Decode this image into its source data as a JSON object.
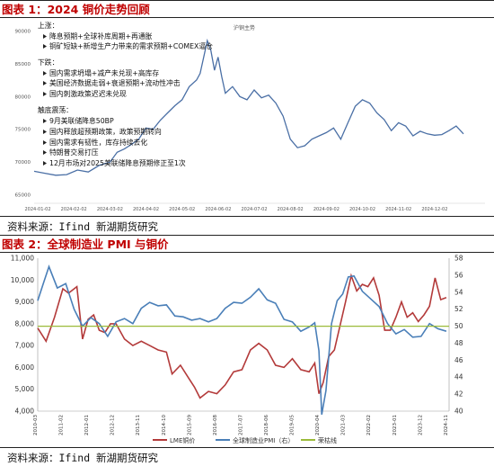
{
  "figure1": {
    "label": "图表 1：",
    "title": "2024 铜价走势回顾",
    "source": "资料来源：Ifind 新湖期货研究",
    "chart_data": {
      "type": "line",
      "legend": "沪铜主势",
      "y_ticks": [
        "65000",
        "70000",
        "75000",
        "80000",
        "85000",
        "90000"
      ],
      "x_ticks": [
        "2024-01-02",
        "2024-02-02",
        "2024-03-02",
        "2024-04-02",
        "2024-05-02",
        "2024-06-02",
        "2024-07-02",
        "2024-08-02",
        "2024-09-02",
        "2024-10-02",
        "2024-11-02",
        "2024-12-02"
      ],
      "ylim": [
        64000,
        91000
      ],
      "xlim": [
        0,
        12
      ],
      "series": [
        {
          "name": "沪铜主势",
          "x": [
            0,
            0.3,
            0.6,
            0.9,
            1.2,
            1.5,
            1.8,
            2.1,
            2.3,
            2.5,
            2.7,
            2.9,
            3.1,
            3.3,
            3.5,
            3.7,
            3.9,
            4.1,
            4.3,
            4.5,
            4.6,
            4.7,
            4.8,
            4.9,
            5.0,
            5.1,
            5.2,
            5.3,
            5.5,
            5.7,
            5.9,
            6.1,
            6.3,
            6.5,
            6.7,
            6.9,
            7.1,
            7.3,
            7.5,
            7.7,
            7.9,
            8.1,
            8.3,
            8.5,
            8.7,
            8.9,
            9.1,
            9.3,
            9.5,
            9.7,
            9.9,
            10.1,
            10.3,
            10.5,
            10.7,
            10.9,
            11.1,
            11.3,
            11.5,
            11.7,
            11.9
          ],
          "values": [
            68600,
            68300,
            68000,
            68100,
            68800,
            68500,
            69500,
            70000,
            71500,
            72000,
            72700,
            73500,
            75200,
            75000,
            76400,
            77500,
            78600,
            79500,
            81500,
            82500,
            83500,
            86000,
            88500,
            87000,
            84000,
            86000,
            83000,
            80500,
            81500,
            80000,
            79500,
            81000,
            79800,
            80200,
            79000,
            77000,
            73500,
            72200,
            72500,
            73500,
            74000,
            74500,
            75200,
            73500,
            76000,
            78500,
            79500,
            79000,
            77500,
            76500,
            74800,
            76000,
            75500,
            74000,
            74700,
            74300,
            74100,
            74200,
            74800,
            75500,
            74300
          ]
        }
      ],
      "annotations": [
        {
          "text": "上涨："
        },
        {
          "text": "降息预期+全球补库周期+再通胀"
        },
        {
          "text": "铜矿短缺+新增生产力带来的需求预期+COMEX逼仓"
        },
        {
          "text": "下跌："
        },
        {
          "text": "国内需求坍塌+减产未兑现+高库存"
        },
        {
          "text": "美国经济数据走弱+衰退预期+流动性冲击"
        },
        {
          "text": "国内刺激政策迟迟未兑现"
        },
        {
          "text": "触底震荡："
        },
        {
          "text": "9月美联储降息50BP"
        },
        {
          "text": "国内释放超预期政策，政策预期转向"
        },
        {
          "text": "国内需求有韧性，库存持续去化"
        },
        {
          "text": "特朗普交易打压"
        },
        {
          "text": "12月市场对2025美联储降息预期修正至1次"
        }
      ]
    }
  },
  "figure2": {
    "label": "图表 2：",
    "title": "全球制造业 PMI 与铜价",
    "source": "资料来源：Ifind 新湖期货研究",
    "chart_data": {
      "type": "line",
      "y_left_ticks": [
        "4,000",
        "5,000",
        "6,000",
        "7,000",
        "8,000",
        "9,000",
        "10,000",
        "11,000"
      ],
      "y_right_ticks": [
        "40",
        "42",
        "44",
        "46",
        "48",
        "50",
        "52",
        "54",
        "56",
        "58"
      ],
      "ylim_left": [
        4000,
        11000
      ],
      "ylim_right": [
        40,
        58
      ],
      "x_ticks": [
        "2010-03",
        "2011-02",
        "2012-01",
        "2012-12",
        "2013-11",
        "2014-10",
        "2015-09",
        "2016-08",
        "2017-07",
        "2018-06",
        "2019-05",
        "2020-04",
        "2021-03",
        "2022-02",
        "2023-01",
        "2023-12",
        "2024-11"
      ],
      "xlim": [
        2010.2,
        2024.9
      ],
      "series": [
        {
          "name": "LME铜价",
          "axis": "left",
          "x": [
            2010.2,
            2010.5,
            2010.8,
            2011.1,
            2011.3,
            2011.6,
            2011.8,
            2012.0,
            2012.2,
            2012.4,
            2012.6,
            2012.8,
            2013.0,
            2013.3,
            2013.6,
            2013.9,
            2014.2,
            2014.5,
            2014.8,
            2015.0,
            2015.3,
            2015.6,
            2015.8,
            2016.0,
            2016.3,
            2016.6,
            2016.9,
            2017.2,
            2017.5,
            2017.8,
            2018.1,
            2018.4,
            2018.7,
            2019.0,
            2019.3,
            2019.6,
            2019.9,
            2020.1,
            2020.25,
            2020.4,
            2020.6,
            2020.8,
            2021.0,
            2021.2,
            2021.4,
            2021.6,
            2021.8,
            2022.0,
            2022.2,
            2022.4,
            2022.6,
            2022.8,
            2023.0,
            2023.2,
            2023.4,
            2023.6,
            2023.8,
            2024.0,
            2024.2,
            2024.4,
            2024.6,
            2024.8
          ],
          "values": [
            7800,
            7200,
            8300,
            9600,
            9400,
            9700,
            7300,
            8200,
            8400,
            7700,
            7600,
            8000,
            8000,
            7300,
            7000,
            7200,
            7000,
            6800,
            6700,
            5700,
            6100,
            5500,
            5100,
            4600,
            4900,
            4800,
            5200,
            5800,
            5900,
            6800,
            7100,
            6800,
            6100,
            6000,
            6400,
            5900,
            5800,
            6200,
            4800,
            5300,
            6500,
            6800,
            7900,
            9000,
            10200,
            9500,
            9800,
            9700,
            10100,
            9300,
            7700,
            7700,
            8300,
            9000,
            8300,
            8500,
            8100,
            8400,
            8800,
            10100,
            9100,
            9200
          ]
        },
        {
          "name": "全球制造业PMI（右）",
          "axis": "right",
          "x": [
            2010.2,
            2010.4,
            2010.6,
            2010.9,
            2011.2,
            2011.5,
            2011.8,
            2012.1,
            2012.4,
            2012.7,
            2013.0,
            2013.3,
            2013.6,
            2013.9,
            2014.2,
            2014.5,
            2014.8,
            2015.1,
            2015.4,
            2015.7,
            2016.0,
            2016.3,
            2016.6,
            2016.9,
            2017.2,
            2017.5,
            2017.8,
            2018.1,
            2018.4,
            2018.7,
            2019.0,
            2019.3,
            2019.6,
            2019.9,
            2020.1,
            2020.25,
            2020.35,
            2020.5,
            2020.7,
            2020.9,
            2021.1,
            2021.3,
            2021.5,
            2021.8,
            2022.1,
            2022.4,
            2022.7,
            2023.0,
            2023.3,
            2023.6,
            2023.9,
            2024.2,
            2024.5,
            2024.8
          ],
          "values": [
            53,
            55,
            57,
            54.5,
            55,
            52,
            50,
            51,
            50.3,
            48.8,
            50.5,
            50.9,
            50.3,
            52.1,
            52.8,
            52.4,
            52.5,
            51.2,
            51.1,
            50.7,
            50.9,
            50.5,
            50.9,
            52.1,
            52.8,
            52.7,
            53.4,
            54.4,
            53.1,
            52.7,
            50.8,
            50.5,
            49.4,
            49.9,
            50.4,
            47.1,
            39.6,
            42.4,
            50.3,
            53,
            53.8,
            55.8,
            55.9,
            54.1,
            53.2,
            52.3,
            50.3,
            49.1,
            49.6,
            48.7,
            48.8,
            50.3,
            49.7,
            49.4
          ]
        },
        {
          "name": "荣枯线",
          "axis": "right",
          "x": [
            2010.2,
            2024.9
          ],
          "values": [
            50,
            50
          ]
        }
      ],
      "legend": [
        "LME铜价",
        "全球制造业PMI（右）",
        "荣枯线"
      ],
      "colors": {
        "LME铜价": "#b33a3a",
        "全球制造业PMI（右）": "#4a7fb8",
        "荣枯线": "#9bbb3a"
      }
    }
  },
  "colors": {
    "fig1_line": "#4a6fa5",
    "accent": "#c00000"
  }
}
